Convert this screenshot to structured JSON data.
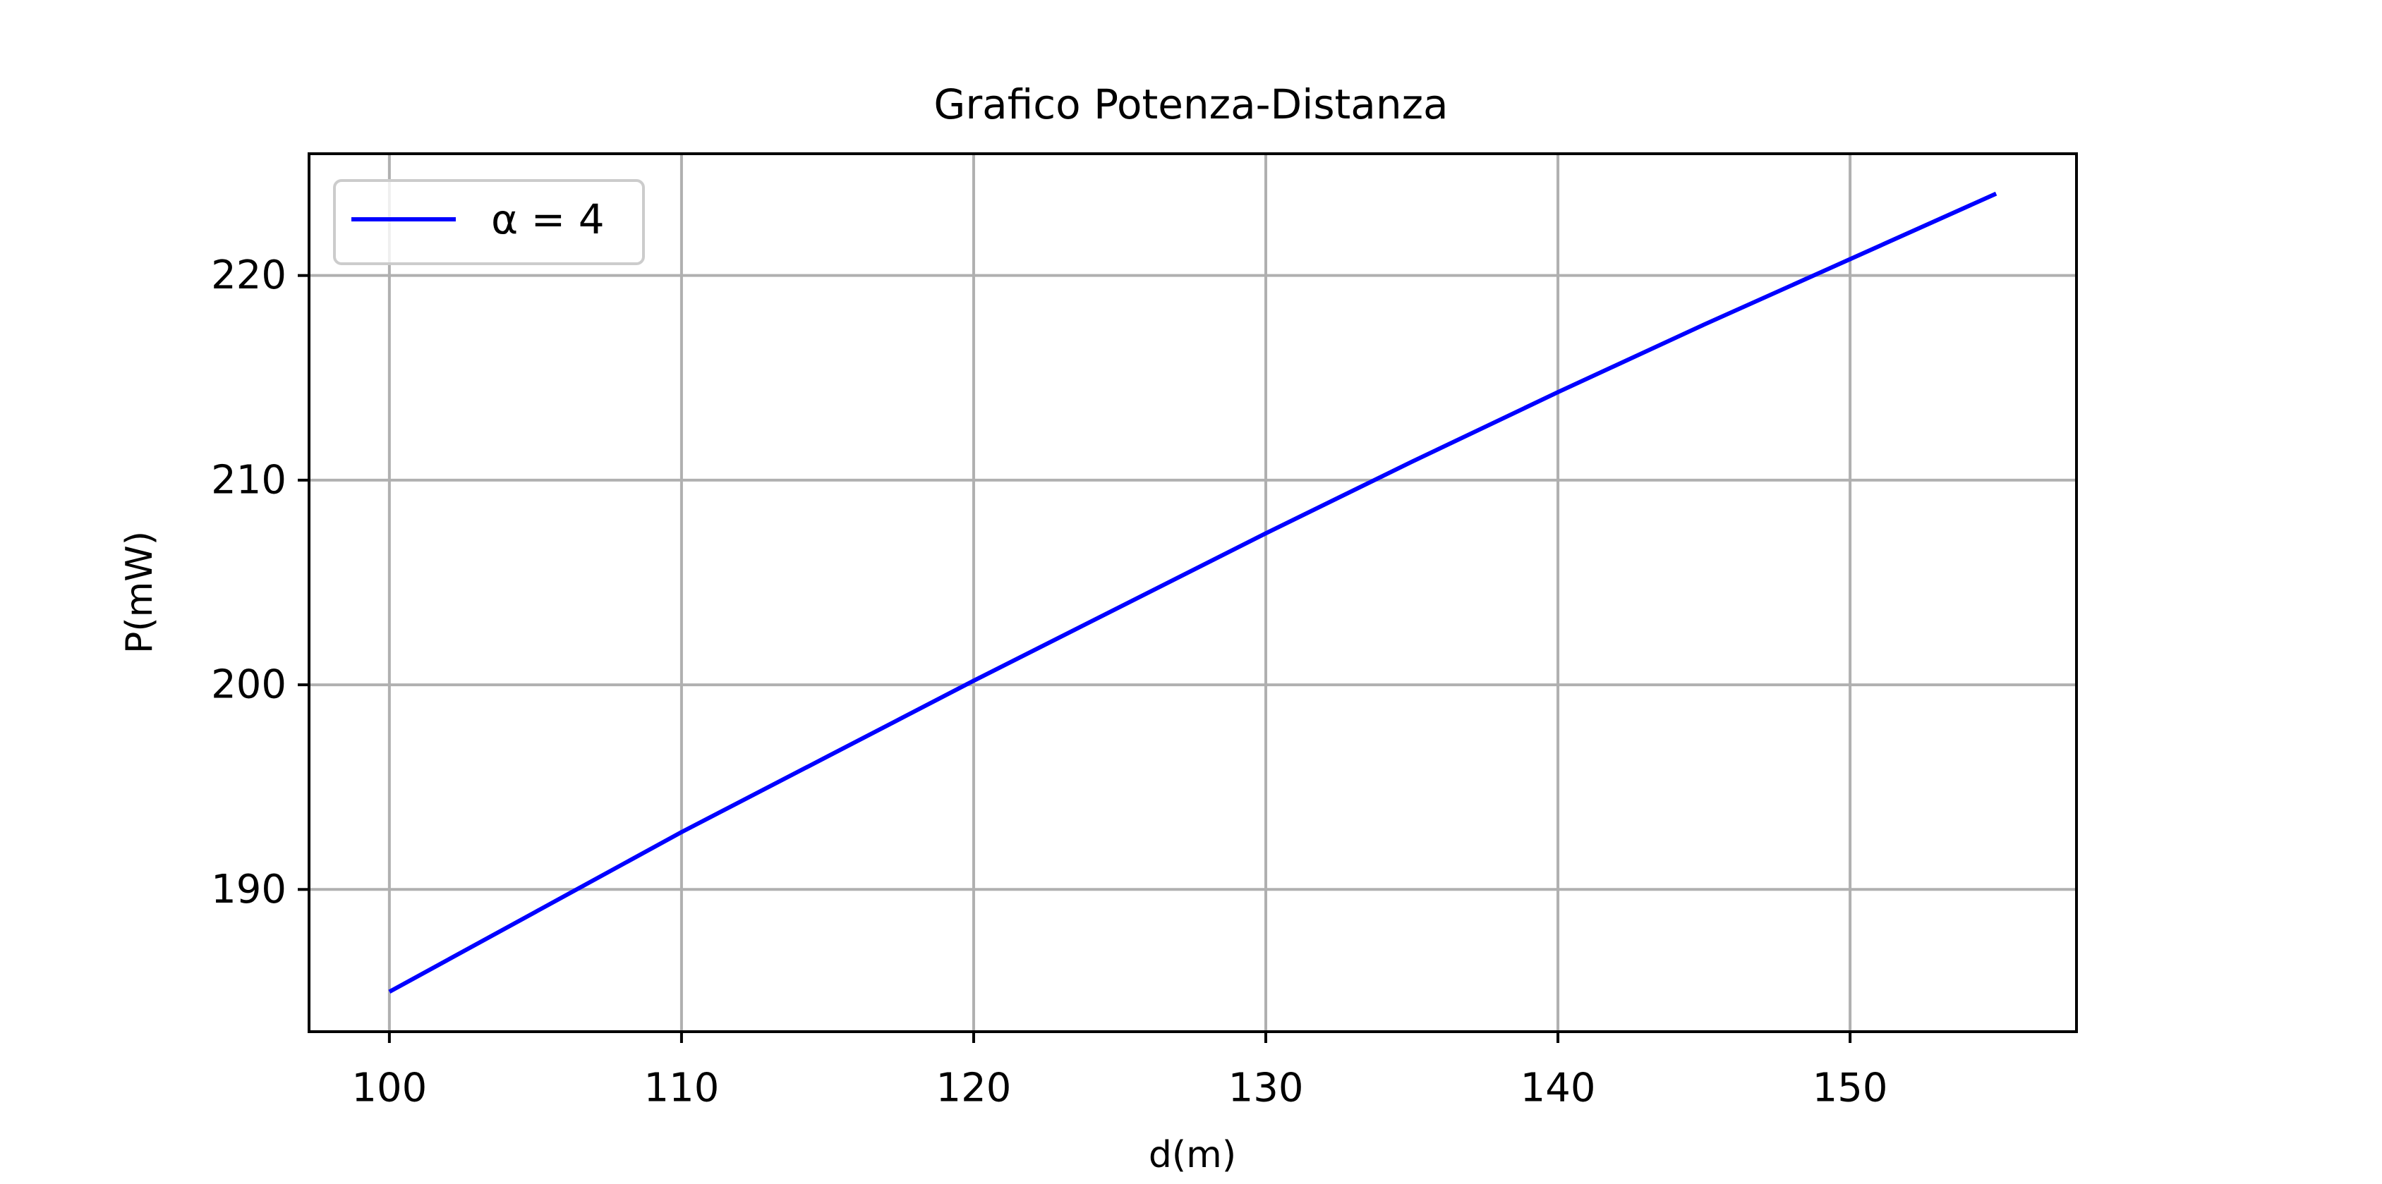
{
  "chart_data": {
    "type": "line",
    "title": "Grafico Potenza-Distanza",
    "xlabel": "d(m)",
    "ylabel": "P(mW)",
    "xlim": [
      97.25,
      157.75
    ],
    "ylim": [
      183.05,
      225.95
    ],
    "xticks": [
      100,
      110,
      120,
      130,
      140,
      150
    ],
    "yticks": [
      190,
      200,
      210,
      220
    ],
    "grid": true,
    "legend_position": "top-left",
    "series": [
      {
        "name": "α = 4",
        "color": "#0000ff",
        "x": [
          100,
          105,
          110,
          115,
          120,
          125,
          130,
          135,
          140,
          145,
          150,
          155
        ],
        "y": [
          185.0,
          188.9,
          192.8,
          196.5,
          200.2,
          203.8,
          207.4,
          210.9,
          214.3,
          217.6,
          220.8,
          224.0
        ]
      }
    ]
  }
}
